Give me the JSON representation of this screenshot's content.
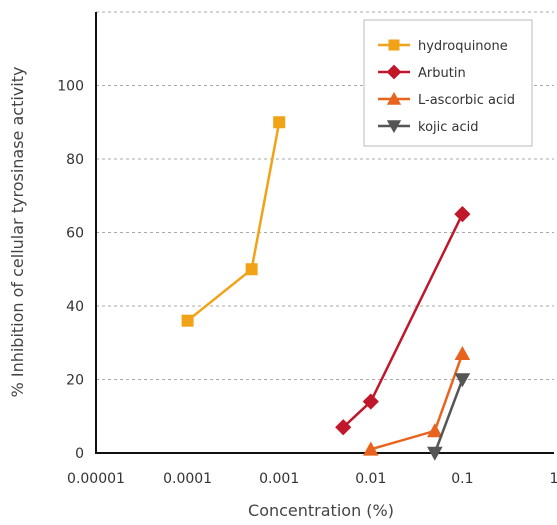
{
  "chart_data": {
    "type": "line",
    "title": "",
    "xlabel": "Concentration (%)",
    "ylabel": "% Inhibition of cellular tyrosinase activity",
    "xscale": "log",
    "xlim": [
      1e-05,
      1
    ],
    "ylim": [
      0,
      120
    ],
    "xticks": [
      1e-05,
      0.0001,
      0.001,
      0.01,
      0.1,
      1
    ],
    "xtick_labels": [
      "0.00001",
      "0.0001",
      "0.001",
      "0.01",
      "0.1",
      "1"
    ],
    "yticks": [
      0,
      20,
      40,
      60,
      80,
      100
    ],
    "ytick_labels": [
      "0",
      "20",
      "40",
      "60",
      "80",
      "100"
    ],
    "grid": "horizontal dashed",
    "legend_position": "top-right",
    "series": [
      {
        "name": "hydroquinone",
        "marker": "square",
        "color": "#F2A216",
        "x": [
          0.0001,
          0.0005,
          0.001
        ],
        "y": [
          36,
          50,
          90
        ]
      },
      {
        "name": "Arbutin",
        "marker": "diamond",
        "color": "#C0172B",
        "x": [
          0.005,
          0.01,
          0.1
        ],
        "y": [
          7,
          14,
          65
        ]
      },
      {
        "name": "L-ascorbic acid",
        "marker": "triangle-up",
        "color": "#E8641E",
        "x": [
          0.01,
          0.05,
          0.1
        ],
        "y": [
          1,
          6,
          27
        ]
      },
      {
        "name": "kojic acid",
        "marker": "triangle-down",
        "color": "#555555",
        "x": [
          0.05,
          0.1
        ],
        "y": [
          0,
          20
        ]
      }
    ]
  }
}
